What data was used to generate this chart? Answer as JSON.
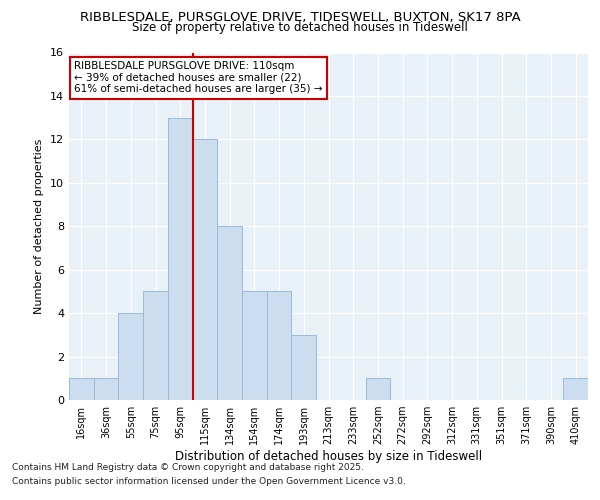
{
  "title1": "RIBBLESDALE, PURSGLOVE DRIVE, TIDESWELL, BUXTON, SK17 8PA",
  "title2": "Size of property relative to detached houses in Tideswell",
  "xlabel": "Distribution of detached houses by size in Tideswell",
  "ylabel": "Number of detached properties",
  "categories": [
    "16sqm",
    "36sqm",
    "55sqm",
    "75sqm",
    "95sqm",
    "115sqm",
    "134sqm",
    "154sqm",
    "174sqm",
    "193sqm",
    "213sqm",
    "233sqm",
    "252sqm",
    "272sqm",
    "292sqm",
    "312sqm",
    "331sqm",
    "351sqm",
    "371sqm",
    "390sqm",
    "410sqm"
  ],
  "values": [
    1,
    1,
    4,
    5,
    13,
    12,
    8,
    5,
    5,
    3,
    0,
    0,
    1,
    0,
    0,
    0,
    0,
    0,
    0,
    0,
    1
  ],
  "bar_color": "#ccddf0",
  "bar_edge_color": "#99bbd8",
  "vline_x": 4.5,
  "vline_color": "#cc0000",
  "ylim": [
    0,
    16
  ],
  "yticks": [
    0,
    2,
    4,
    6,
    8,
    10,
    12,
    14,
    16
  ],
  "annotation_lines": [
    "RIBBLESDALE PURSGLOVE DRIVE: 110sqm",
    "← 39% of detached houses are smaller (22)",
    "61% of semi-detached houses are larger (35) →"
  ],
  "annotation_box_color": "#ffffff",
  "annotation_box_edge": "#cc0000",
  "footer1": "Contains HM Land Registry data © Crown copyright and database right 2025.",
  "footer2": "Contains public sector information licensed under the Open Government Licence v3.0.",
  "bg_color": "#ffffff",
  "plot_bg_color": "#e8f0f8"
}
